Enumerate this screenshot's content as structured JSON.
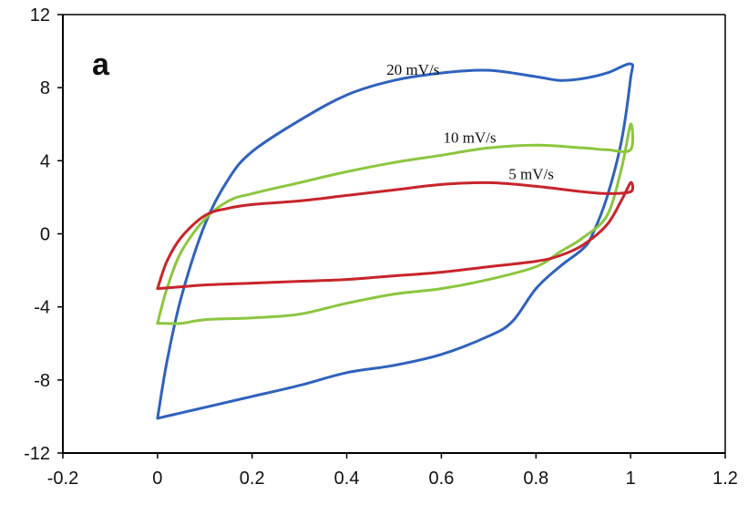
{
  "panel_label": "a",
  "chart_data": {
    "type": "line",
    "title": "",
    "xlabel": "",
    "ylabel": "",
    "xlim": [
      -0.2,
      1.2
    ],
    "ylim": [
      -12,
      12
    ],
    "x_ticks": [
      -0.2,
      0,
      0.2,
      0.4,
      0.6,
      0.8,
      1,
      1.2
    ],
    "x_tick_labels": [
      "-0.2",
      "0",
      "0.2",
      "0.4",
      "0.6",
      "0.8",
      "1",
      "1.2"
    ],
    "y_ticks": [
      -12,
      -8,
      -4,
      0,
      4,
      8,
      12
    ],
    "y_tick_labels": [
      "-12",
      "-8",
      "-4",
      "0",
      "4",
      "8",
      "12"
    ],
    "grid": false,
    "legend": "none",
    "series": [
      {
        "name": "20 mV/s",
        "color": "#2f62bd",
        "x": [
          0,
          0.02,
          0.05,
          0.1,
          0.15,
          0.2,
          0.3,
          0.4,
          0.5,
          0.6,
          0.7,
          0.8,
          0.85,
          0.9,
          0.95,
          1.0,
          1.0,
          0.98,
          0.95,
          0.92,
          0.9,
          0.85,
          0.8,
          0.75,
          0.7,
          0.6,
          0.5,
          0.4,
          0.3,
          0.2,
          0.1,
          0.05,
          0.0
        ],
        "y": [
          -10.1,
          -7.0,
          -3.5,
          0.5,
          3.0,
          4.5,
          6.2,
          7.6,
          8.4,
          8.8,
          8.95,
          8.6,
          8.4,
          8.5,
          8.8,
          9.3,
          8.5,
          5.0,
          2.0,
          0.0,
          -0.8,
          -1.8,
          -3.0,
          -4.8,
          -5.6,
          -6.6,
          -7.2,
          -7.6,
          -8.3,
          -8.9,
          -9.5,
          -9.8,
          -10.1
        ]
      },
      {
        "name": "10 mV/s",
        "color": "#8cc63f",
        "x": [
          0,
          0.02,
          0.05,
          0.1,
          0.15,
          0.2,
          0.3,
          0.4,
          0.5,
          0.6,
          0.7,
          0.8,
          0.9,
          0.95,
          1.0,
          1.0,
          0.98,
          0.95,
          0.9,
          0.85,
          0.8,
          0.7,
          0.6,
          0.5,
          0.4,
          0.3,
          0.2,
          0.1,
          0.05,
          0.0
        ],
        "y": [
          -4.9,
          -3.0,
          -1.0,
          0.8,
          1.8,
          2.2,
          2.8,
          3.4,
          3.9,
          4.3,
          4.7,
          4.85,
          4.7,
          4.6,
          4.6,
          6.0,
          3.5,
          1.0,
          -0.2,
          -1.0,
          -1.8,
          -2.5,
          -3.0,
          -3.3,
          -3.8,
          -4.4,
          -4.6,
          -4.7,
          -4.9,
          -4.9
        ]
      },
      {
        "name": "5 mV/s",
        "color": "#c8242b",
        "x": [
          0,
          0.02,
          0.05,
          0.1,
          0.15,
          0.2,
          0.3,
          0.4,
          0.5,
          0.6,
          0.7,
          0.8,
          0.9,
          0.95,
          1.0,
          1.0,
          0.98,
          0.95,
          0.9,
          0.85,
          0.8,
          0.7,
          0.6,
          0.5,
          0.4,
          0.3,
          0.2,
          0.1,
          0.05,
          0.0
        ],
        "y": [
          -3.0,
          -1.5,
          -0.2,
          1.0,
          1.4,
          1.6,
          1.8,
          2.1,
          2.4,
          2.7,
          2.8,
          2.6,
          2.3,
          2.2,
          2.3,
          2.8,
          1.8,
          0.5,
          -0.6,
          -1.2,
          -1.5,
          -1.8,
          -2.1,
          -2.3,
          -2.5,
          -2.6,
          -2.7,
          -2.8,
          -2.9,
          -3.0
        ]
      }
    ],
    "annotations": [
      {
        "text": "20 mV/s",
        "x": 0.54,
        "y": 8.7
      },
      {
        "text": "10 mV/s",
        "x": 0.66,
        "y": 5.0
      },
      {
        "text": "5 mV/s",
        "x": 0.79,
        "y": 3.0
      }
    ]
  }
}
